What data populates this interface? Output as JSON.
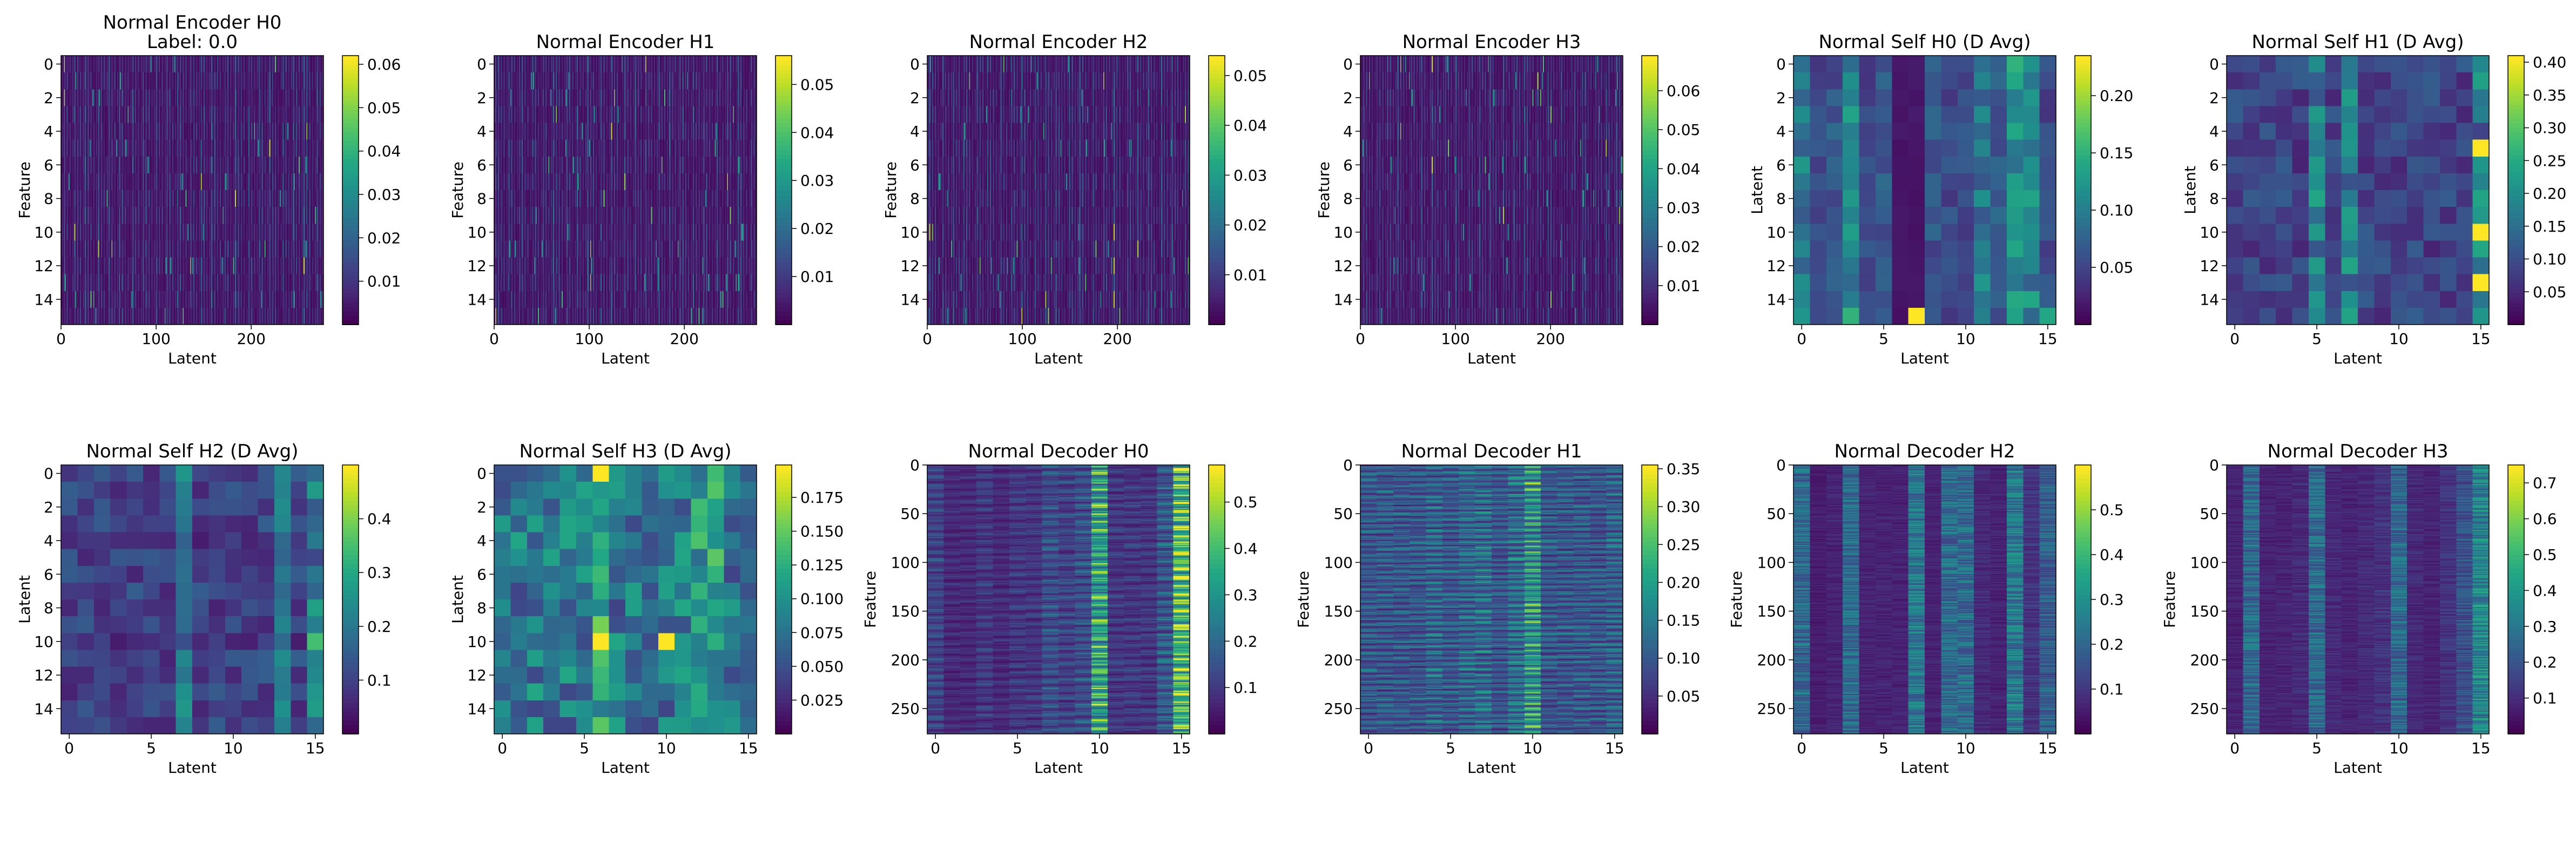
{
  "chart_data": [
    {
      "type": "heatmap",
      "title": [
        "Normal Encoder H0",
        "Label: 0.0"
      ],
      "xlabel": "Latent",
      "ylabel": "Feature",
      "xlim": [
        0,
        276
      ],
      "ylim": [
        15.5,
        -0.5
      ],
      "x_ticks": [
        "0",
        "100",
        "200"
      ],
      "x_tick_values": [
        0,
        100,
        200
      ],
      "y_ticks": [
        "0",
        "2",
        "4",
        "6",
        "8",
        "10",
        "12",
        "14"
      ],
      "y_tick_values": [
        0,
        2,
        4,
        6,
        8,
        10,
        12,
        14
      ],
      "colorbar": {
        "vmin": 0.0,
        "vmax": 0.062,
        "ticks": [
          "0.01",
          "0.02",
          "0.03",
          "0.04",
          "0.05",
          "0.06"
        ],
        "tick_values": [
          0.01,
          0.02,
          0.03,
          0.04,
          0.05,
          0.06
        ]
      },
      "colormap": "viridis",
      "pattern": "fine vertical streaks, mostly low values",
      "grid": {
        "rows": 16,
        "cols": 276
      }
    },
    {
      "type": "heatmap",
      "title": [
        "Normal Encoder H1"
      ],
      "xlabel": "Latent",
      "ylabel": "Feature",
      "xlim": [
        0,
        276
      ],
      "ylim": [
        15.5,
        -0.5
      ],
      "x_ticks": [
        "0",
        "100",
        "200"
      ],
      "x_tick_values": [
        0,
        100,
        200
      ],
      "y_ticks": [
        "0",
        "2",
        "4",
        "6",
        "8",
        "10",
        "12",
        "14"
      ],
      "y_tick_values": [
        0,
        2,
        4,
        6,
        8,
        10,
        12,
        14
      ],
      "colorbar": {
        "vmin": 0.0,
        "vmax": 0.056,
        "ticks": [
          "0.01",
          "0.02",
          "0.03",
          "0.04",
          "0.05"
        ],
        "tick_values": [
          0.01,
          0.02,
          0.03,
          0.04,
          0.05
        ]
      },
      "colormap": "viridis",
      "pattern": "fine vertical streaks, mostly low values",
      "grid": {
        "rows": 16,
        "cols": 276
      }
    },
    {
      "type": "heatmap",
      "title": [
        "Normal Encoder H2"
      ],
      "xlabel": "Latent",
      "ylabel": "Feature",
      "xlim": [
        0,
        276
      ],
      "ylim": [
        15.5,
        -0.5
      ],
      "x_ticks": [
        "0",
        "100",
        "200"
      ],
      "x_tick_values": [
        0,
        100,
        200
      ],
      "y_ticks": [
        "0",
        "2",
        "4",
        "6",
        "8",
        "10",
        "12",
        "14"
      ],
      "y_tick_values": [
        0,
        2,
        4,
        6,
        8,
        10,
        12,
        14
      ],
      "colorbar": {
        "vmin": 0.0,
        "vmax": 0.054,
        "ticks": [
          "0.01",
          "0.02",
          "0.03",
          "0.04",
          "0.05"
        ],
        "tick_values": [
          0.01,
          0.02,
          0.03,
          0.04,
          0.05
        ]
      },
      "colormap": "viridis",
      "pattern": "fine vertical streaks, mostly low values",
      "grid": {
        "rows": 16,
        "cols": 276
      }
    },
    {
      "type": "heatmap",
      "title": [
        "Normal Encoder H3"
      ],
      "xlabel": "Latent",
      "ylabel": "Feature",
      "xlim": [
        0,
        276
      ],
      "ylim": [
        15.5,
        -0.5
      ],
      "x_ticks": [
        "0",
        "100",
        "200"
      ],
      "x_tick_values": [
        0,
        100,
        200
      ],
      "y_ticks": [
        "0",
        "2",
        "4",
        "6",
        "8",
        "10",
        "12",
        "14"
      ],
      "y_tick_values": [
        0,
        2,
        4,
        6,
        8,
        10,
        12,
        14
      ],
      "colorbar": {
        "vmin": 0.0,
        "vmax": 0.069,
        "ticks": [
          "0.01",
          "0.02",
          "0.03",
          "0.04",
          "0.05",
          "0.06"
        ],
        "tick_values": [
          0.01,
          0.02,
          0.03,
          0.04,
          0.05,
          0.06
        ]
      },
      "colormap": "viridis",
      "pattern": "fine vertical streaks, mostly low values",
      "grid": {
        "rows": 16,
        "cols": 276
      }
    },
    {
      "type": "heatmap",
      "title": [
        "Normal Self H0 (D Avg)"
      ],
      "xlabel": "Latent",
      "ylabel": "Latent",
      "xlim": [
        -0.5,
        15.5
      ],
      "ylim": [
        15.5,
        -0.5
      ],
      "x_ticks": [
        "0",
        "5",
        "10",
        "15"
      ],
      "x_tick_values": [
        0,
        5,
        10,
        15
      ],
      "y_ticks": [
        "0",
        "2",
        "4",
        "6",
        "8",
        "10",
        "12",
        "14"
      ],
      "y_tick_values": [
        0,
        2,
        4,
        6,
        8,
        10,
        12,
        14
      ],
      "colorbar": {
        "vmin": 0.0,
        "vmax": 0.235,
        "ticks": [
          "0.05",
          "0.10",
          "0.15",
          "0.20"
        ],
        "tick_values": [
          0.05,
          0.1,
          0.15,
          0.2
        ]
      },
      "colormap": "viridis",
      "pattern": "16x16 blocks with brighter columns 0, 3, 11, 13, 14; peaks at (15,7) and (15,15)",
      "grid": {
        "rows": 16,
        "cols": 16
      }
    },
    {
      "type": "heatmap",
      "title": [
        "Normal Self H1 (D Avg)"
      ],
      "xlabel": "Latent",
      "ylabel": "Latent",
      "xlim": [
        -0.5,
        15.5
      ],
      "ylim": [
        15.5,
        -0.5
      ],
      "x_ticks": [
        "0",
        "5",
        "10",
        "15"
      ],
      "x_tick_values": [
        0,
        5,
        10,
        15
      ],
      "y_ticks": [
        "0",
        "2",
        "4",
        "6",
        "8",
        "10",
        "12",
        "14"
      ],
      "y_tick_values": [
        0,
        2,
        4,
        6,
        8,
        10,
        12,
        14
      ],
      "colorbar": {
        "vmin": 0.0,
        "vmax": 0.41,
        "ticks": [
          "0.05",
          "0.10",
          "0.15",
          "0.20",
          "0.25",
          "0.30",
          "0.35",
          "0.40"
        ],
        "tick_values": [
          0.05,
          0.1,
          0.15,
          0.2,
          0.25,
          0.3,
          0.35,
          0.4
        ]
      },
      "colormap": "viridis",
      "pattern": "16x16 blocks; brighter columns 5, 7, 15; peaks in column 15 at rows 5, 10, 13",
      "grid": {
        "rows": 16,
        "cols": 16
      }
    },
    {
      "type": "heatmap",
      "title": [
        "Normal Self H2 (D Avg)"
      ],
      "xlabel": "Latent",
      "ylabel": "Latent",
      "xlim": [
        -0.5,
        15.5
      ],
      "ylim": [
        15.5,
        -0.5
      ],
      "x_ticks": [
        "0",
        "5",
        "10",
        "15"
      ],
      "x_tick_values": [
        0,
        5,
        10,
        15
      ],
      "y_ticks": [
        "0",
        "2",
        "4",
        "6",
        "8",
        "10",
        "12",
        "14"
      ],
      "y_tick_values": [
        0,
        2,
        4,
        6,
        8,
        10,
        12,
        14
      ],
      "colorbar": {
        "vmin": 0.0,
        "vmax": 0.5,
        "ticks": [
          "0.1",
          "0.2",
          "0.3",
          "0.4"
        ],
        "tick_values": [
          0.1,
          0.2,
          0.3,
          0.4
        ]
      },
      "colormap": "viridis",
      "pattern": "16x16 blocks; brighter columns 7, 13, 15; peak at (10,15)",
      "grid": {
        "rows": 16,
        "cols": 16
      }
    },
    {
      "type": "heatmap",
      "title": [
        "Normal Self H3 (D Avg)"
      ],
      "xlabel": "Latent",
      "ylabel": "Latent",
      "xlim": [
        -0.5,
        15.5
      ],
      "ylim": [
        15.5,
        -0.5
      ],
      "x_ticks": [
        "0",
        "5",
        "10",
        "15"
      ],
      "x_tick_values": [
        0,
        5,
        10,
        15
      ],
      "y_ticks": [
        "0",
        "2",
        "4",
        "6",
        "8",
        "10",
        "12",
        "14"
      ],
      "y_tick_values": [
        0,
        2,
        4,
        6,
        8,
        10,
        12,
        14
      ],
      "colorbar": {
        "vmin": 0.0,
        "vmax": 0.199,
        "ticks": [
          "0.025",
          "0.050",
          "0.075",
          "0.100",
          "0.125",
          "0.150",
          "0.175"
        ],
        "tick_values": [
          0.025,
          0.05,
          0.075,
          0.1,
          0.125,
          0.15,
          0.175
        ]
      },
      "colormap": "viridis",
      "pattern": "16x16 blocks; peaks at (0,6), (10,6), (10,10); bright column 6",
      "grid": {
        "rows": 16,
        "cols": 16
      }
    },
    {
      "type": "heatmap",
      "title": [
        "Normal Decoder H0"
      ],
      "xlabel": "Latent",
      "ylabel": "Feature",
      "xlim": [
        -0.5,
        15.5
      ],
      "ylim": [
        276,
        0
      ],
      "x_ticks": [
        "0",
        "5",
        "10",
        "15"
      ],
      "x_tick_values": [
        0,
        5,
        10,
        15
      ],
      "y_ticks": [
        "0",
        "50",
        "100",
        "150",
        "200",
        "250"
      ],
      "y_tick_values": [
        0,
        50,
        100,
        150,
        200,
        250
      ],
      "colorbar": {
        "vmin": 0.0,
        "vmax": 0.58,
        "ticks": [
          "0.1",
          "0.2",
          "0.3",
          "0.4",
          "0.5"
        ],
        "tick_values": [
          0.1,
          0.2,
          0.3,
          0.4,
          0.5
        ]
      },
      "colormap": "viridis",
      "pattern": "horizontal bands; bright columns 10 and 15",
      "grid": {
        "rows": 276,
        "cols": 16
      }
    },
    {
      "type": "heatmap",
      "title": [
        "Normal Decoder H1"
      ],
      "xlabel": "Latent",
      "ylabel": "Feature",
      "xlim": [
        -0.5,
        15.5
      ],
      "ylim": [
        276,
        0
      ],
      "x_ticks": [
        "0",
        "5",
        "10",
        "15"
      ],
      "x_tick_values": [
        0,
        5,
        10,
        15
      ],
      "y_ticks": [
        "0",
        "50",
        "100",
        "150",
        "200",
        "250"
      ],
      "y_tick_values": [
        0,
        50,
        100,
        150,
        200,
        250
      ],
      "colorbar": {
        "vmin": 0.0,
        "vmax": 0.355,
        "ticks": [
          "0.05",
          "0.10",
          "0.15",
          "0.20",
          "0.25",
          "0.30",
          "0.35"
        ],
        "tick_values": [
          0.05,
          0.1,
          0.15,
          0.2,
          0.25,
          0.3,
          0.35
        ]
      },
      "colormap": "viridis",
      "pattern": "horizontal bands; bright column 10",
      "grid": {
        "rows": 276,
        "cols": 16
      }
    },
    {
      "type": "heatmap",
      "title": [
        "Normal Decoder H2"
      ],
      "xlabel": "Latent",
      "ylabel": "Feature",
      "xlim": [
        -0.5,
        15.5
      ],
      "ylim": [
        276,
        0
      ],
      "x_ticks": [
        "0",
        "5",
        "10",
        "15"
      ],
      "x_tick_values": [
        0,
        5,
        10,
        15
      ],
      "y_ticks": [
        "0",
        "50",
        "100",
        "150",
        "200",
        "250"
      ],
      "y_tick_values": [
        0,
        50,
        100,
        150,
        200,
        250
      ],
      "colorbar": {
        "vmin": 0.0,
        "vmax": 0.6,
        "ticks": [
          "0.1",
          "0.2",
          "0.3",
          "0.4",
          "0.5"
        ],
        "tick_values": [
          0.1,
          0.2,
          0.3,
          0.4,
          0.5
        ]
      },
      "colormap": "viridis",
      "pattern": "vertical stripes; bright columns 0, 3, 7, 9, 13, 15",
      "grid": {
        "rows": 276,
        "cols": 16
      }
    },
    {
      "type": "heatmap",
      "title": [
        "Normal Decoder H3"
      ],
      "xlabel": "Latent",
      "ylabel": "Feature",
      "xlim": [
        -0.5,
        15.5
      ],
      "ylim": [
        276,
        0
      ],
      "x_ticks": [
        "0",
        "5",
        "10",
        "15"
      ],
      "x_tick_values": [
        0,
        5,
        10,
        15
      ],
      "y_ticks": [
        "0",
        "50",
        "100",
        "150",
        "200",
        "250"
      ],
      "y_tick_values": [
        0,
        50,
        100,
        150,
        200,
        250
      ],
      "colorbar": {
        "vmin": 0.0,
        "vmax": 0.75,
        "ticks": [
          "0.1",
          "0.2",
          "0.3",
          "0.4",
          "0.5",
          "0.6",
          "0.7"
        ],
        "tick_values": [
          0.1,
          0.2,
          0.3,
          0.4,
          0.5,
          0.6,
          0.7
        ]
      },
      "colormap": "viridis",
      "pattern": "vertical stripes; bright columns 1, 5, 10, 15",
      "grid": {
        "rows": 276,
        "cols": 16
      }
    }
  ]
}
